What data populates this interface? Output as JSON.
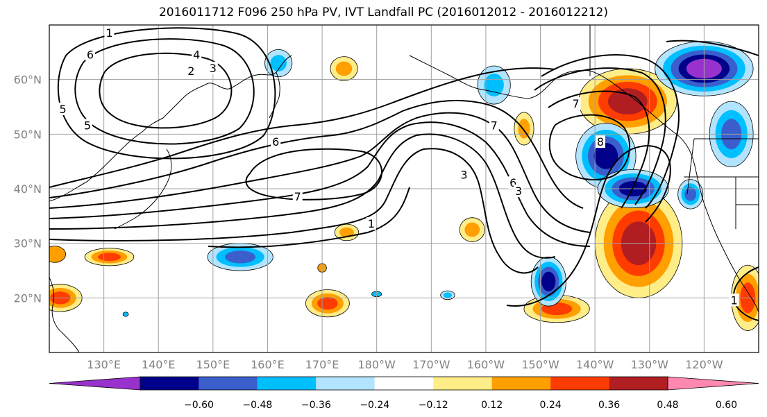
{
  "title": "2016011712 F096 250 hPa PV, IVT Landfall PC (2016012012 - 2016012212)",
  "map": {
    "projection": "cylindrical",
    "lon_range": [
      120,
      250
    ],
    "lat_range": [
      10,
      70
    ],
    "lat_ticks": [
      {
        "value": 20,
        "label": "20°N"
      },
      {
        "value": 30,
        "label": "30°N"
      },
      {
        "value": 40,
        "label": "40°N"
      },
      {
        "value": 50,
        "label": "50°N"
      },
      {
        "value": 60,
        "label": "60°N"
      }
    ],
    "lon_ticks": [
      {
        "value": 130,
        "label": "130°E"
      },
      {
        "value": 140,
        "label": "140°E"
      },
      {
        "value": 150,
        "label": "150°E"
      },
      {
        "value": 160,
        "label": "160°E"
      },
      {
        "value": 170,
        "label": "170°E"
      },
      {
        "value": 180,
        "label": "180°W"
      },
      {
        "value": 190,
        "label": "170°W"
      },
      {
        "value": 200,
        "label": "160°W"
      },
      {
        "value": 210,
        "label": "150°W"
      },
      {
        "value": 220,
        "label": "140°W"
      },
      {
        "value": 230,
        "label": "130°W"
      },
      {
        "value": 240,
        "label": "120°W"
      }
    ],
    "grid": true,
    "contour_labels": [
      {
        "text": "1",
        "lon": 131,
        "lat": 68.5
      },
      {
        "text": "6",
        "lon": 127.5,
        "lat": 64.5
      },
      {
        "text": "4",
        "lon": 147,
        "lat": 64.5
      },
      {
        "text": "2",
        "lon": 146,
        "lat": 61.5
      },
      {
        "text": "3",
        "lon": 150,
        "lat": 62
      },
      {
        "text": "5",
        "lon": 122.5,
        "lat": 54.5
      },
      {
        "text": "5",
        "lon": 127,
        "lat": 51.5
      },
      {
        "text": "6",
        "lon": 161.5,
        "lat": 48.5
      },
      {
        "text": "7",
        "lon": 165.5,
        "lat": 38.5
      },
      {
        "text": "1",
        "lon": 179,
        "lat": 33.5
      },
      {
        "text": "3",
        "lon": 196,
        "lat": 42.5
      },
      {
        "text": "6",
        "lon": 205,
        "lat": 41
      },
      {
        "text": "3",
        "lon": 206,
        "lat": 39.5
      },
      {
        "text": "7",
        "lon": 201.5,
        "lat": 51.5
      },
      {
        "text": "7",
        "lon": 216.5,
        "lat": 55.5
      },
      {
        "text": "8",
        "lon": 221,
        "lat": 48.5
      },
      {
        "text": "1",
        "lon": 245.5,
        "lat": 19.5
      }
    ],
    "colorfill_blobs": [
      {
        "lon": 226,
        "lat": 56,
        "rx": 9,
        "ry": 6,
        "levels": [
          "#ffed87",
          "#ff9f00",
          "#ff3c00",
          "#b01e22"
        ]
      },
      {
        "lon": 228,
        "lat": 30,
        "rx": 8,
        "ry": 10,
        "levels": [
          "#ffed87",
          "#ff9f00",
          "#ff3c00",
          "#b01e22"
        ]
      },
      {
        "lon": 248,
        "lat": 20,
        "rx": 3,
        "ry": 6,
        "levels": [
          "#ffed87",
          "#ff9f00",
          "#ff3c00"
        ]
      },
      {
        "lon": 213,
        "lat": 18,
        "rx": 6,
        "ry": 2.5,
        "levels": [
          "#ffed87",
          "#ff9f00",
          "#ff3c00"
        ]
      },
      {
        "lon": 171,
        "lat": 19,
        "rx": 4,
        "ry": 2.5,
        "levels": [
          "#ffed87",
          "#ff9f00",
          "#ff3c00"
        ]
      },
      {
        "lon": 122,
        "lat": 20,
        "rx": 4,
        "ry": 2.5,
        "levels": [
          "#ffed87",
          "#ff9f00",
          "#ff3c00"
        ]
      },
      {
        "lon": 131,
        "lat": 27.5,
        "rx": 4.5,
        "ry": 1.6,
        "levels": [
          "#ffed87",
          "#ff9f00",
          "#ff3c00"
        ]
      },
      {
        "lon": 121,
        "lat": 28,
        "rx": 2,
        "ry": 1.5,
        "levels": [
          "#ff9f00"
        ]
      },
      {
        "lon": 207,
        "lat": 51,
        "rx": 1.8,
        "ry": 3,
        "levels": [
          "#ffed87",
          "#ff9f00"
        ]
      },
      {
        "lon": 197.5,
        "lat": 32.5,
        "rx": 2.3,
        "ry": 2.2,
        "levels": [
          "#ffed87",
          "#ff9f00"
        ]
      },
      {
        "lon": 174.5,
        "lat": 32,
        "rx": 2.2,
        "ry": 1.5,
        "levels": [
          "#ffed87",
          "#ff9f00"
        ]
      },
      {
        "lon": 174,
        "lat": 62,
        "rx": 2.5,
        "ry": 2.2,
        "levels": [
          "#ffed87",
          "#ff9f00"
        ]
      },
      {
        "lon": 170,
        "lat": 25.5,
        "rx": 0.8,
        "ry": 0.8,
        "levels": [
          "#ff9f00"
        ]
      },
      {
        "lon": 222,
        "lat": 46,
        "rx": 5.5,
        "ry": 6,
        "levels": [
          "#b2e4ff",
          "#00bfff",
          "#3a5fcd",
          "#00008b"
        ]
      },
      {
        "lon": 227,
        "lat": 40,
        "rx": 6.5,
        "ry": 3.5,
        "levels": [
          "#b2e4ff",
          "#00bfff",
          "#3a5fcd",
          "#00008b"
        ]
      },
      {
        "lon": 211.5,
        "lat": 23,
        "rx": 3.2,
        "ry": 4.5,
        "levels": [
          "#b2e4ff",
          "#00bfff",
          "#3a5fcd",
          "#00008b"
        ]
      },
      {
        "lon": 240,
        "lat": 62,
        "rx": 9,
        "ry": 5,
        "levels": [
          "#b2e4ff",
          "#00bfff",
          "#3a5fcd",
          "#00008b",
          "#9932cc"
        ]
      },
      {
        "lon": 245,
        "lat": 50,
        "rx": 4,
        "ry": 6,
        "levels": [
          "#b2e4ff",
          "#00bfff",
          "#3a5fcd"
        ]
      },
      {
        "lon": 237.5,
        "lat": 39,
        "rx": 2.3,
        "ry": 2.7,
        "levels": [
          "#b2e4ff",
          "#00bfff",
          "#3a5fcd"
        ]
      },
      {
        "lon": 155,
        "lat": 27.5,
        "rx": 6,
        "ry": 2.5,
        "levels": [
          "#b2e4ff",
          "#00bfff",
          "#3a5fcd"
        ]
      },
      {
        "lon": 201.5,
        "lat": 59,
        "rx": 3,
        "ry": 3.5,
        "levels": [
          "#b2e4ff",
          "#00bfff"
        ]
      },
      {
        "lon": 162,
        "lat": 63,
        "rx": 2.5,
        "ry": 2.5,
        "levels": [
          "#b2e4ff",
          "#00bfff"
        ]
      },
      {
        "lon": 193,
        "lat": 20.5,
        "rx": 1.3,
        "ry": 0.8,
        "levels": [
          "#b2e4ff",
          "#00bfff"
        ]
      },
      {
        "lon": 180,
        "lat": 20.7,
        "rx": 0.9,
        "ry": 0.5,
        "levels": [
          "#00bfff"
        ]
      },
      {
        "lon": 134,
        "lat": 17,
        "rx": 0.5,
        "ry": 0.4,
        "levels": [
          "#00bfff"
        ]
      }
    ]
  },
  "colorbar": {
    "colors": [
      "#9932cc",
      "#00008b",
      "#3a5fcd",
      "#00bfff",
      "#b2e4ff",
      "#ffffff",
      "#ffed87",
      "#ff9f00",
      "#ff3c00",
      "#b01e22",
      "#ff88b0"
    ],
    "tick_labels": [
      "−0.60",
      "−0.48",
      "−0.36",
      "−0.24",
      "−0.12",
      "0.12",
      "0.24",
      "0.36",
      "0.48",
      "0.60"
    ]
  }
}
